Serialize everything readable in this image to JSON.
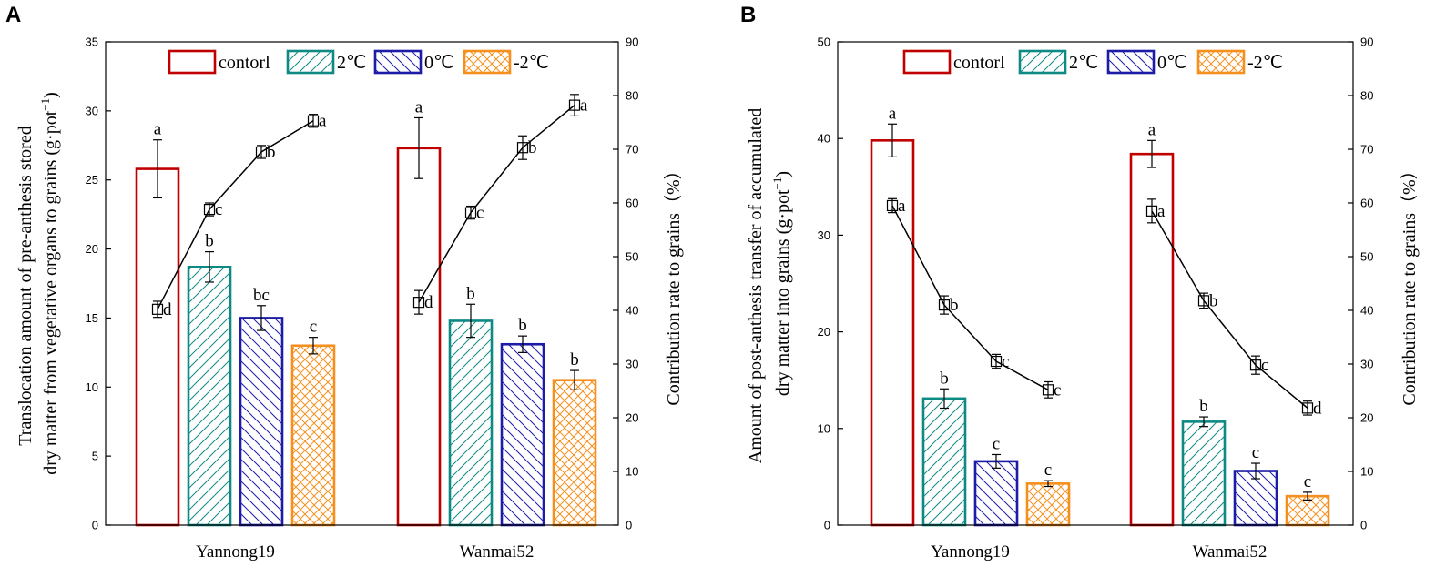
{
  "chart_data": [
    {
      "panel": "A",
      "type": "bar",
      "categories": [
        "Yannong19",
        "Wanmai52"
      ],
      "series": [
        {
          "name": "contorl",
          "values": [
            25.8,
            27.3
          ],
          "errors": [
            2.1,
            2.2
          ],
          "letters": [
            "a",
            "a"
          ]
        },
        {
          "name": "2℃",
          "values": [
            18.7,
            14.8
          ],
          "errors": [
            1.1,
            1.2
          ],
          "letters": [
            "b",
            "b"
          ]
        },
        {
          "name": "0℃",
          "values": [
            15.0,
            13.1
          ],
          "errors": [
            0.9,
            0.6
          ],
          "letters": [
            "bc",
            "b"
          ]
        },
        {
          "name": "-2℃",
          "values": [
            13.0,
            10.5
          ],
          "errors": [
            0.6,
            0.7
          ],
          "letters": [
            "c",
            "b"
          ]
        }
      ],
      "line_series": [
        {
          "group": "Yannong19",
          "values": [
            40.2,
            58.8,
            69.5,
            75.3
          ],
          "errors": [
            1.5,
            1.2,
            1.2,
            1.2
          ],
          "letters": [
            "d",
            "c",
            "b",
            "a"
          ]
        },
        {
          "group": "Wanmai52",
          "values": [
            41.5,
            58.2,
            70.3,
            78.2
          ],
          "errors": [
            2.2,
            1.2,
            2.2,
            2.0
          ],
          "letters": [
            "d",
            "c",
            "b",
            "a"
          ]
        }
      ],
      "ylim": [
        0,
        35
      ],
      "yticks": [
        "0",
        "5",
        "10",
        "15",
        "20",
        "25",
        "30",
        "35"
      ],
      "y2lim": [
        0,
        90
      ],
      "y2ticks": [
        "0",
        "10",
        "20",
        "30",
        "40",
        "50",
        "60",
        "70",
        "80",
        "90"
      ],
      "ylabel_line1": "Translocation amount of pre-anthesis stored",
      "ylabel_line2": "dry matter from vegetative organs to grains (g·pot",
      "ylabel_sup": "−1",
      "ylabel_end": ")",
      "y2label": "Contribution rate to grains（%）",
      "legend": "top"
    },
    {
      "panel": "B",
      "type": "bar",
      "categories": [
        "Yannong19",
        "Wanmai52"
      ],
      "series": [
        {
          "name": "contorl",
          "values": [
            39.8,
            38.4
          ],
          "errors": [
            1.7,
            1.4
          ],
          "letters": [
            "a",
            "a"
          ]
        },
        {
          "name": "2℃",
          "values": [
            13.1,
            10.7
          ],
          "errors": [
            1.0,
            0.5
          ],
          "letters": [
            "b",
            "b"
          ]
        },
        {
          "name": "0℃",
          "values": [
            6.6,
            5.6
          ],
          "errors": [
            0.7,
            0.8
          ],
          "letters": [
            "c",
            "c"
          ]
        },
        {
          "name": "-2℃",
          "values": [
            4.3,
            3.0
          ],
          "errors": [
            0.3,
            0.4
          ],
          "letters": [
            "c",
            "c"
          ]
        }
      ],
      "line_series": [
        {
          "group": "Yannong19",
          "values": [
            59.5,
            41.0,
            30.5,
            25.2
          ],
          "errors": [
            1.3,
            1.7,
            1.3,
            1.5
          ],
          "letters": [
            "a",
            "b",
            "c",
            "c"
          ]
        },
        {
          "group": "Wanmai52",
          "values": [
            58.5,
            41.8,
            29.8,
            21.8
          ],
          "errors": [
            2.2,
            1.4,
            1.7,
            1.3
          ],
          "letters": [
            "a",
            "b",
            "c",
            "d"
          ]
        }
      ],
      "ylim": [
        0,
        50
      ],
      "yticks": [
        "0",
        "10",
        "20",
        "30",
        "40",
        "50"
      ],
      "y2lim": [
        0,
        90
      ],
      "y2ticks": [
        "0",
        "10",
        "20",
        "30",
        "40",
        "50",
        "60",
        "70",
        "80",
        "90"
      ],
      "ylabel_line1": "Amount of post-anthesis transfer of accumulated",
      "ylabel_line2": "dry matter into grains (g·pot",
      "ylabel_sup": "−1",
      "ylabel_end": ")",
      "y2label": "Contribution rate to grains（%）",
      "legend": "top"
    }
  ],
  "colors": {
    "contorl": "#c00000",
    "2℃": "#0e8a84",
    "0℃": "#1c1ca6",
    "-2℃": "#f5901e"
  }
}
